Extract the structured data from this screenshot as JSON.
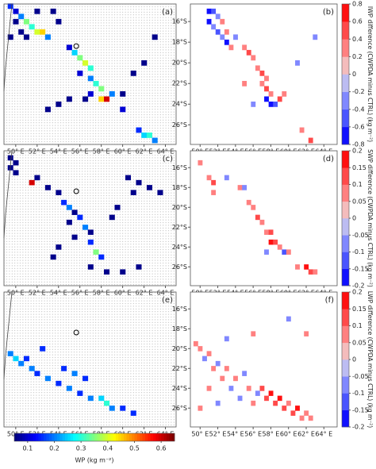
{
  "chart_data": [
    {
      "type": "heatmap",
      "panel_label": "(a)",
      "colormap": "jet",
      "clim": [
        0.05,
        0.65
      ],
      "xlim": [
        48.9,
        65.0
      ],
      "ylim": [
        -14.3,
        -27.9
      ],
      "xticks": [
        {
          "value": 50,
          "label": "50° E"
        },
        {
          "value": 52,
          "label": "52° E"
        },
        {
          "value": 54,
          "label": "54° E"
        },
        {
          "value": 56,
          "label": "56° E"
        },
        {
          "value": 58,
          "label": "58° E"
        },
        {
          "value": 60,
          "label": "60° E"
        },
        {
          "value": 62,
          "label": "62° E"
        },
        {
          "value": 64,
          "label": "64° E"
        }
      ],
      "cells": [
        [
          49.5,
          -14.5,
          0.15
        ],
        [
          50,
          -15,
          0.1
        ],
        [
          50.5,
          -15.5,
          0.2
        ],
        [
          51,
          -16,
          0.35
        ],
        [
          51.5,
          -16.5,
          0.3
        ],
        [
          52,
          -17,
          0.4
        ],
        [
          52.5,
          -17,
          0.45
        ],
        [
          53,
          -17.5,
          0.2
        ],
        [
          50,
          -16,
          0.07
        ],
        [
          50.5,
          -17,
          0.07
        ],
        [
          51,
          -17.5,
          0.07
        ],
        [
          52,
          -15,
          0.07
        ],
        [
          53.5,
          -15,
          0.07
        ],
        [
          54,
          -16,
          0.07
        ],
        [
          49.5,
          -17.5,
          0.07
        ],
        [
          55,
          -18.5,
          0.1
        ],
        [
          55.5,
          -19,
          0.25
        ],
        [
          56,
          -19.5,
          0.35
        ],
        [
          56.5,
          -20,
          0.4
        ],
        [
          57,
          -20.5,
          0.3
        ],
        [
          56,
          -21,
          0.1
        ],
        [
          57,
          -21.5,
          0.2
        ],
        [
          57.5,
          -22,
          0.3
        ],
        [
          58,
          -22.5,
          0.35
        ],
        [
          58,
          -23.5,
          0.45
        ],
        [
          58.5,
          -23.5,
          0.6
        ],
        [
          59,
          -23,
          0.2
        ],
        [
          57,
          -23,
          0.1
        ],
        [
          56.5,
          -23.5,
          0.07
        ],
        [
          55,
          -23.5,
          0.07
        ],
        [
          54,
          -24,
          0.07
        ],
        [
          53,
          -24.5,
          0.07
        ],
        [
          60,
          -23,
          0.07
        ],
        [
          61,
          -21,
          0.07
        ],
        [
          62,
          -20,
          0.07
        ],
        [
          63,
          -17.5,
          0.07
        ],
        [
          60,
          -24.5,
          0.1
        ],
        [
          61.5,
          -26.5,
          0.15
        ],
        [
          62,
          -27,
          0.25
        ],
        [
          62.5,
          -27,
          0.3
        ],
        [
          63,
          -27.5,
          0.2
        ]
      ]
    },
    {
      "type": "heatmap",
      "panel_label": "(b)",
      "colormap": "bwr",
      "clim": [
        -0.8,
        0.8
      ],
      "xlim": [
        48.9,
        65.5
      ],
      "ylim": [
        -14.3,
        -27.9
      ],
      "xticks": [
        {
          "value": 50,
          "label": "50° E"
        },
        {
          "value": 52,
          "label": "52° E"
        },
        {
          "value": 54,
          "label": "54° E"
        },
        {
          "value": 56,
          "label": "56° E"
        },
        {
          "value": 58,
          "label": "58° E"
        },
        {
          "value": 60,
          "label": "60° E"
        },
        {
          "value": 62,
          "label": "62° E"
        },
        {
          "value": 64,
          "label": "64° E"
        }
      ],
      "yticks": [
        {
          "value": -16,
          "label": "16°S"
        },
        {
          "value": -18,
          "label": "18°S"
        },
        {
          "value": -20,
          "label": "20°S"
        },
        {
          "value": -22,
          "label": "22°S"
        },
        {
          "value": -24,
          "label": "24°S"
        },
        {
          "value": -26,
          "label": "26°S"
        }
      ],
      "colorbar": {
        "label": "IWP difference (CWPDA minus CTRL) (kg m⁻²)",
        "ticks": [
          0.8,
          0.6,
          0.4,
          0.2,
          0,
          -0.2,
          -0.4,
          -0.6,
          -0.8
        ]
      },
      "cells": [
        [
          51,
          -15,
          -0.7
        ],
        [
          51.5,
          -15,
          -0.5
        ],
        [
          52,
          -15.5,
          -0.3
        ],
        [
          51,
          -16,
          -0.7
        ],
        [
          51.5,
          -16.5,
          -0.4
        ],
        [
          52,
          -17,
          -0.6
        ],
        [
          52.5,
          -17.5,
          -0.3
        ],
        [
          53,
          -17,
          0.3
        ],
        [
          53,
          -18,
          -0.7
        ],
        [
          52.5,
          -16,
          0.3
        ],
        [
          54,
          -17.5,
          -0.3
        ],
        [
          53.5,
          -18.5,
          0.3
        ],
        [
          55,
          -18.5,
          0.3
        ],
        [
          55.5,
          -19,
          0.5
        ],
        [
          56,
          -19.5,
          0.3
        ],
        [
          56.5,
          -20.5,
          0.3
        ],
        [
          57,
          -21,
          0.5
        ],
        [
          57.5,
          -21.5,
          0.3
        ],
        [
          57,
          -22,
          0.3
        ],
        [
          57.5,
          -22.5,
          0.5
        ],
        [
          58,
          -23,
          0.3
        ],
        [
          57.5,
          -23.5,
          -0.7
        ],
        [
          58,
          -24,
          -0.7
        ],
        [
          58.5,
          -24,
          -0.5
        ],
        [
          59,
          -23.5,
          0.5
        ],
        [
          59.5,
          -23,
          0.3
        ],
        [
          56,
          -24,
          -0.3
        ],
        [
          55,
          -22,
          0.3
        ],
        [
          61,
          -20,
          -0.3
        ],
        [
          63,
          -17.5,
          -0.3
        ],
        [
          61.5,
          -26.5,
          0.3
        ],
        [
          62.5,
          -27.5,
          0.5
        ]
      ]
    },
    {
      "type": "heatmap",
      "panel_label": "(c)",
      "colormap": "jet",
      "clim": [
        0.05,
        0.65
      ],
      "xlim": [
        48.9,
        65.0
      ],
      "ylim": [
        -14.3,
        -27.9
      ],
      "xticks": [
        {
          "value": 50,
          "label": "50° E"
        },
        {
          "value": 52,
          "label": "52° E"
        },
        {
          "value": 54,
          "label": "54° E"
        },
        {
          "value": 56,
          "label": "56° E"
        },
        {
          "value": 58,
          "label": "58° E"
        },
        {
          "value": 60,
          "label": "60° E"
        },
        {
          "value": 62,
          "label": "62° E"
        },
        {
          "value": 64,
          "label": "64° E"
        }
      ],
      "cells": [
        [
          49.5,
          -15,
          0.07
        ],
        [
          50,
          -15.5,
          0.07
        ],
        [
          49.5,
          -16,
          0.07
        ],
        [
          50,
          -16.5,
          0.07
        ],
        [
          51.5,
          -17.5,
          0.6
        ],
        [
          52,
          -17,
          0.07
        ],
        [
          53,
          -18,
          0.07
        ],
        [
          54,
          -18.5,
          0.07
        ],
        [
          54.5,
          -19.5,
          0.15
        ],
        [
          55,
          -20,
          0.2
        ],
        [
          55.5,
          -20.5,
          0.07
        ],
        [
          56,
          -21,
          0.15
        ],
        [
          55,
          -21.5,
          0.07
        ],
        [
          56.5,
          -22,
          0.2
        ],
        [
          57,
          -22.5,
          0.07
        ],
        [
          55.5,
          -23,
          0.07
        ],
        [
          57,
          -23.5,
          0.15
        ],
        [
          57.5,
          -24.5,
          0.35
        ],
        [
          58,
          -25,
          0.15
        ],
        [
          54,
          -24,
          0.07
        ],
        [
          53.5,
          -25,
          0.07
        ],
        [
          60.5,
          -17,
          0.07
        ],
        [
          61.5,
          -17.5,
          0.07
        ],
        [
          62.5,
          -18,
          0.07
        ],
        [
          63.5,
          -18.5,
          0.07
        ],
        [
          61,
          -18.5,
          0.07
        ],
        [
          59.5,
          -20,
          0.07
        ],
        [
          57,
          -26,
          0.07
        ],
        [
          58.5,
          -26.5,
          0.07
        ],
        [
          60,
          -26.5,
          0.07
        ],
        [
          61.5,
          -26,
          0.07
        ],
        [
          59,
          -21,
          0.07
        ]
      ]
    },
    {
      "type": "heatmap",
      "panel_label": "(d)",
      "colormap": "bwr",
      "clim": [
        -0.2,
        0.2
      ],
      "xlim": [
        48.9,
        65.5
      ],
      "ylim": [
        -14.3,
        -27.9
      ],
      "xticks": [
        {
          "value": 50,
          "label": "50° E"
        },
        {
          "value": 52,
          "label": "52° E"
        },
        {
          "value": 54,
          "label": "54° E"
        },
        {
          "value": 56,
          "label": "56° E"
        },
        {
          "value": 58,
          "label": "58° E"
        },
        {
          "value": 60,
          "label": "60° E"
        },
        {
          "value": 62,
          "label": "62° E"
        },
        {
          "value": 64,
          "label": "64° E"
        }
      ],
      "yticks": [
        {
          "value": -16,
          "label": "16°S"
        },
        {
          "value": -18,
          "label": "18°S"
        },
        {
          "value": -20,
          "label": "20°S"
        },
        {
          "value": -22,
          "label": "22°S"
        },
        {
          "value": -24,
          "label": "24°S"
        },
        {
          "value": -26,
          "label": "26°S"
        }
      ],
      "colorbar": {
        "label": "SWP difference (CWPDA minus CTRL) (kg m⁻²)",
        "ticks": [
          0.2,
          0.15,
          0.1,
          0.05,
          0,
          -0.05,
          -0.1,
          -0.15,
          -0.2
        ]
      },
      "cells": [
        [
          50,
          -15.5,
          0.07
        ],
        [
          51,
          -17,
          0.07
        ],
        [
          51.5,
          -17.5,
          0.12
        ],
        [
          51.5,
          -18.5,
          0.07
        ],
        [
          53,
          -17,
          -0.07
        ],
        [
          54.5,
          -18,
          0.07
        ],
        [
          55,
          -18,
          -0.07
        ],
        [
          55.5,
          -19.5,
          0.07
        ],
        [
          56,
          -20,
          0.07
        ],
        [
          56.5,
          -21,
          0.12
        ],
        [
          57,
          -21.5,
          0.07
        ],
        [
          57.5,
          -22.5,
          0.07
        ],
        [
          58,
          -22.5,
          0.12
        ],
        [
          58,
          -23.5,
          0.17
        ],
        [
          58.5,
          -23.5,
          0.12
        ],
        [
          59,
          -24,
          0.07
        ],
        [
          59.5,
          -24.5,
          -0.12
        ],
        [
          57.5,
          -24.5,
          -0.07
        ],
        [
          60,
          -24.5,
          0.07
        ],
        [
          61,
          -26,
          0.07
        ],
        [
          62,
          -26,
          0.17
        ],
        [
          62.5,
          -26.5,
          0.12
        ],
        [
          63,
          -26.5,
          0.07
        ]
      ]
    },
    {
      "type": "heatmap",
      "panel_label": "(e)",
      "colormap": "jet",
      "clim": [
        0.05,
        0.65
      ],
      "xlim": [
        48.9,
        65.0
      ],
      "ylim": [
        -14.3,
        -27.9
      ],
      "xticks": [
        {
          "value": 50,
          "label": "50° E"
        },
        {
          "value": 52,
          "label": "52° E"
        },
        {
          "value": 54,
          "label": "54° E"
        },
        {
          "value": 56,
          "label": "56° E"
        },
        {
          "value": 58,
          "label": "58° E"
        },
        {
          "value": 60,
          "label": "60° E"
        },
        {
          "value": 62,
          "label": "62° E"
        },
        {
          "value": 64,
          "label": "64° E"
        }
      ],
      "colorbar": {
        "title": "WP (kg m⁻²)",
        "ticks": [
          0.1,
          0.2,
          0.3,
          0.4,
          0.5,
          0.6
        ]
      },
      "cells": [
        [
          49.5,
          -20.5,
          0.2
        ],
        [
          50,
          -21,
          0.25
        ],
        [
          50.5,
          -21.5,
          0.2
        ],
        [
          51,
          -21,
          0.15
        ],
        [
          51.5,
          -22,
          0.2
        ],
        [
          52,
          -22.5,
          0.15
        ],
        [
          53,
          -23,
          0.2
        ],
        [
          54,
          -23.5,
          0.15
        ],
        [
          55,
          -24,
          0.2
        ],
        [
          56,
          -24.5,
          0.15
        ],
        [
          57,
          -25,
          0.2
        ],
        [
          58,
          -25,
          0.25
        ],
        [
          58.5,
          -25.5,
          0.3
        ],
        [
          59,
          -26,
          0.2
        ],
        [
          60,
          -26,
          0.15
        ],
        [
          61,
          -26.5,
          0.15
        ],
        [
          54.5,
          -22,
          0.15
        ],
        [
          55.5,
          -22.5,
          0.2
        ],
        [
          56.5,
          -23,
          0.15
        ],
        [
          52.5,
          -20,
          0.15
        ]
      ]
    },
    {
      "type": "heatmap",
      "panel_label": "(f)",
      "colormap": "bwr",
      "clim": [
        -0.2,
        0.2
      ],
      "xlim": [
        48.9,
        65.5
      ],
      "ylim": [
        -14.3,
        -27.9
      ],
      "xticks": [
        {
          "value": 50,
          "label": "50° E"
        },
        {
          "value": 52,
          "label": "52° E"
        },
        {
          "value": 54,
          "label": "54° E"
        },
        {
          "value": 56,
          "label": "56° E"
        },
        {
          "value": 58,
          "label": "58° E"
        },
        {
          "value": 60,
          "label": "60° E"
        },
        {
          "value": 62,
          "label": "62° E"
        },
        {
          "value": 64,
          "label": "64° E"
        }
      ],
      "yticks": [
        {
          "value": -16,
          "label": "16°S"
        },
        {
          "value": -18,
          "label": "18°S"
        },
        {
          "value": -20,
          "label": "20°S"
        },
        {
          "value": -22,
          "label": "22°S"
        },
        {
          "value": -24,
          "label": "24°S"
        },
        {
          "value": -26,
          "label": "26°S"
        }
      ],
      "colorbar": {
        "label": "LWP difference (CWPDA minus CTRL) (kg m⁻²)",
        "ticks": [
          0.2,
          0.15,
          0.1,
          0.05,
          0,
          -0.05,
          -0.1,
          -0.15,
          -0.2
        ]
      },
      "cells": [
        [
          49.5,
          -19.5,
          0.07
        ],
        [
          50,
          -20,
          0.07
        ],
        [
          50.5,
          -21,
          -0.07
        ],
        [
          51,
          -20.5,
          0.07
        ],
        [
          51.5,
          -22,
          0.07
        ],
        [
          52,
          -21.5,
          -0.07
        ],
        [
          52.5,
          -23,
          0.07
        ],
        [
          53,
          -22,
          0.07
        ],
        [
          53.5,
          -24,
          -0.07
        ],
        [
          54,
          -23,
          0.07
        ],
        [
          54.5,
          -25,
          -0.07
        ],
        [
          55,
          -22.5,
          -0.07
        ],
        [
          55.5,
          -24,
          0.07
        ],
        [
          56,
          -25.5,
          0.07
        ],
        [
          56.5,
          -24.5,
          -0.07
        ],
        [
          57,
          -24,
          0.12
        ],
        [
          57.5,
          -25,
          0.12
        ],
        [
          58,
          -24.5,
          0.17
        ],
        [
          58.5,
          -25.5,
          0.12
        ],
        [
          59,
          -25,
          0.17
        ],
        [
          59.5,
          -26,
          0.12
        ],
        [
          60,
          -25.5,
          0.07
        ],
        [
          60.5,
          -26.5,
          0.12
        ],
        [
          61,
          -26,
          0.17
        ],
        [
          61.5,
          -27,
          0.07
        ],
        [
          62,
          -26.5,
          0.07
        ],
        [
          62.5,
          -27,
          0.07
        ],
        [
          51,
          -24,
          0.07
        ],
        [
          52,
          -25.5,
          -0.07
        ],
        [
          50,
          -26,
          0.07
        ],
        [
          53,
          -19,
          -0.07
        ],
        [
          56,
          -18.5,
          0.07
        ],
        [
          60,
          -17,
          -0.07
        ],
        [
          62,
          -18.5,
          0.07
        ]
      ]
    }
  ]
}
